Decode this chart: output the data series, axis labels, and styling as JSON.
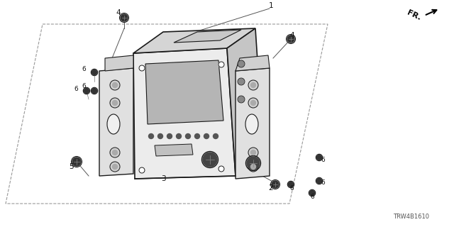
{
  "bg_color": "#ffffff",
  "diagram_code": "TRW4B1610",
  "line_color": "#1a1a1a",
  "light_fill": "#f0f0f0",
  "mid_fill": "#d8d8d8",
  "dark_fill": "#b8b8b8",
  "screw_fill": "#333333",
  "dashed_color": "#999999",
  "annotation_color": "#111111",
  "figsize": [
    6.4,
    3.2
  ],
  "dpi": 100
}
